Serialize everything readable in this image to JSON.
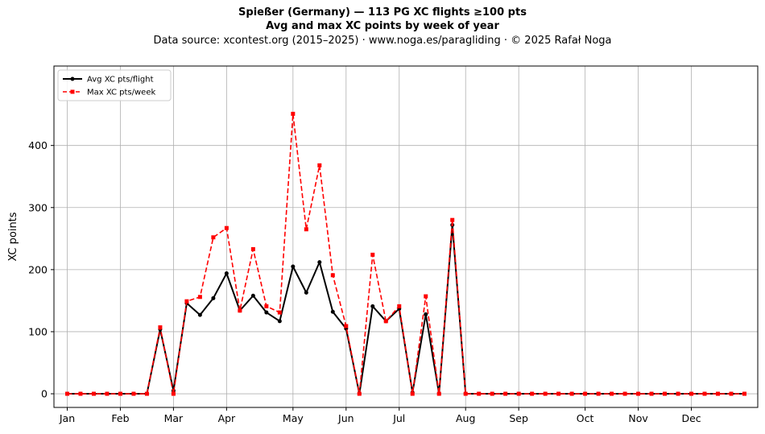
{
  "header": {
    "title": "Spießer (Germany)  —  113 PG XC flights ≥100 pts",
    "subtitle": "Avg and max XC points by week of year",
    "source": "Data source: xcontest.org (2015–2025)  ·  www.noga.es/paragliding  ·  © 2025 Rafał Noga"
  },
  "chart_data": {
    "type": "line",
    "title": "Spießer (Germany)  —  113 PG XC flights ≥100 pts",
    "subtitle": "Avg and max XC points by week of year",
    "xlabel": "",
    "ylabel": "XC points",
    "ylim": [
      -22,
      528
    ],
    "xlim": [
      0,
      53
    ],
    "grid": true,
    "legend_position": "upper left",
    "x": [
      1,
      2,
      3,
      4,
      5,
      6,
      7,
      8,
      9,
      10,
      11,
      12,
      13,
      14,
      15,
      16,
      17,
      18,
      19,
      20,
      21,
      22,
      23,
      24,
      25,
      26,
      27,
      28,
      29,
      30,
      31,
      32,
      33,
      34,
      35,
      36,
      37,
      38,
      39,
      40,
      41,
      42,
      43,
      44,
      45,
      46,
      47,
      48,
      49,
      50,
      51,
      52
    ],
    "x_ticks": [
      {
        "label": "Jan",
        "x": 1
      },
      {
        "label": "Feb",
        "x": 5
      },
      {
        "label": "Mar",
        "x": 9
      },
      {
        "label": "Apr",
        "x": 13
      },
      {
        "label": "May",
        "x": 18
      },
      {
        "label": "Jun",
        "x": 22
      },
      {
        "label": "Jul",
        "x": 26
      },
      {
        "label": "Aug",
        "x": 31
      },
      {
        "label": "Sep",
        "x": 35
      },
      {
        "label": "Oct",
        "x": 40
      },
      {
        "label": "Nov",
        "x": 44
      },
      {
        "label": "Dec",
        "x": 48
      }
    ],
    "y_ticks": [
      0,
      100,
      200,
      300,
      400
    ],
    "series": [
      {
        "name": "Avg XC pts/flight",
        "color": "#000000",
        "style": "solid",
        "marker": "circle",
        "values": [
          0,
          0,
          0,
          0,
          0,
          0,
          0,
          104,
          5,
          146,
          127,
          154,
          194,
          134,
          158,
          131,
          117,
          205,
          163,
          212,
          132,
          105,
          0,
          141,
          117,
          137,
          2,
          128,
          0,
          272,
          0,
          0,
          0,
          0,
          0,
          0,
          0,
          0,
          0,
          0,
          0,
          0,
          0,
          0,
          0,
          0,
          0,
          0,
          0,
          0,
          0,
          0
        ]
      },
      {
        "name": "Max XC pts/week",
        "color": "#ff0000",
        "style": "dashed",
        "marker": "square",
        "values": [
          0,
          0,
          0,
          0,
          0,
          0,
          0,
          107,
          0,
          149,
          156,
          252,
          267,
          134,
          233,
          141,
          131,
          451,
          265,
          368,
          191,
          109,
          0,
          224,
          117,
          141,
          0,
          157,
          0,
          280,
          0,
          0,
          0,
          0,
          0,
          0,
          0,
          0,
          0,
          0,
          0,
          0,
          0,
          0,
          0,
          0,
          0,
          0,
          0,
          0,
          0,
          0
        ]
      }
    ]
  }
}
